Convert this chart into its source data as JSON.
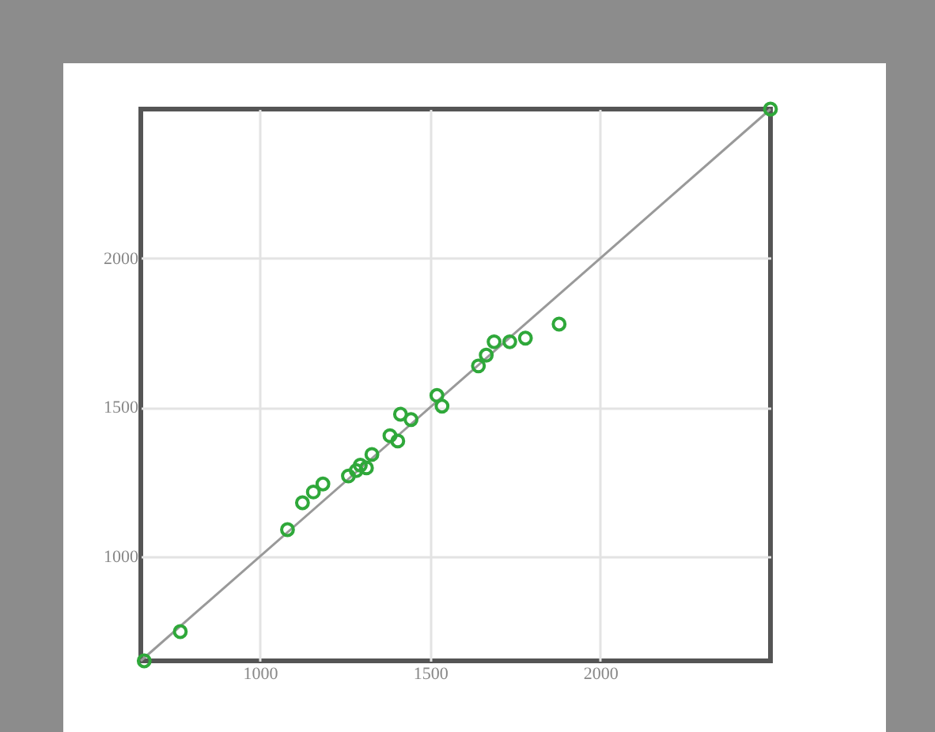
{
  "chart_data": {
    "type": "scatter",
    "series": [
      {
        "color": "#2fa83a",
        "marker": "circle",
        "x": [
          660,
          766,
          1081,
          1125,
          1157,
          1185,
          1260,
          1283,
          1295,
          1313,
          1329,
          1382,
          1405,
          1413,
          1444,
          1520,
          1535,
          1642,
          1665,
          1688,
          1734,
          1780,
          1879,
          2500
        ],
        "values": [
          650,
          748,
          1090,
          1180,
          1216,
          1243,
          1270,
          1288,
          1306,
          1297,
          1342,
          1405,
          1387,
          1477,
          1459,
          1540,
          1504,
          1639,
          1675,
          1720,
          1720,
          1732,
          1779,
          2500
        ]
      },
      {
        "type": "line",
        "color": "#999999",
        "x": [
          650,
          2500
        ],
        "values": [
          650,
          2500
        ]
      }
    ],
    "xlim": [
      650,
      2500
    ],
    "ylim": [
      650,
      2500
    ],
    "xticks": [
      1000,
      1500,
      2000
    ],
    "yticks": [
      1000,
      1500,
      2000
    ],
    "grid": true
  }
}
